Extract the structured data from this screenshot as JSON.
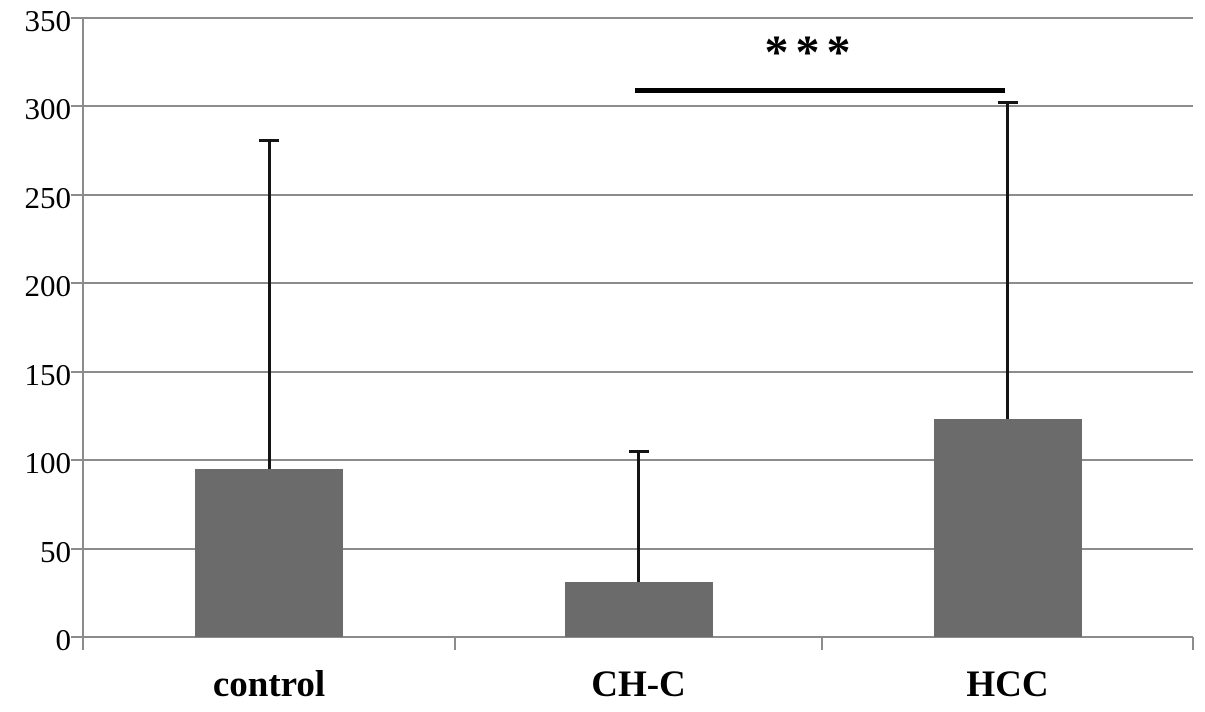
{
  "figure": {
    "background_color": "#ffffff",
    "bar_color": "#6b6b6b",
    "grid_color": "#8c8c8c",
    "error_bar_color": "#141414",
    "annotation_color": "#000000"
  },
  "chart_data": {
    "type": "bar",
    "title": "",
    "xlabel": "",
    "ylabel": "",
    "categories": [
      "control",
      "CH-C",
      "HCC"
    ],
    "values": [
      95,
      31,
      123
    ],
    "error_upper_tops": [
      281,
      105,
      302
    ],
    "yticks": [
      0,
      50,
      100,
      150,
      200,
      250,
      300,
      350
    ],
    "ylim": [
      0,
      350
    ],
    "grid": "horizontal",
    "legend": "none",
    "significance": {
      "from_category": "CH-C",
      "from_index": 1,
      "to_category": "HCC",
      "to_index": 2,
      "label": "***",
      "bracket_y_value": 309
    }
  }
}
